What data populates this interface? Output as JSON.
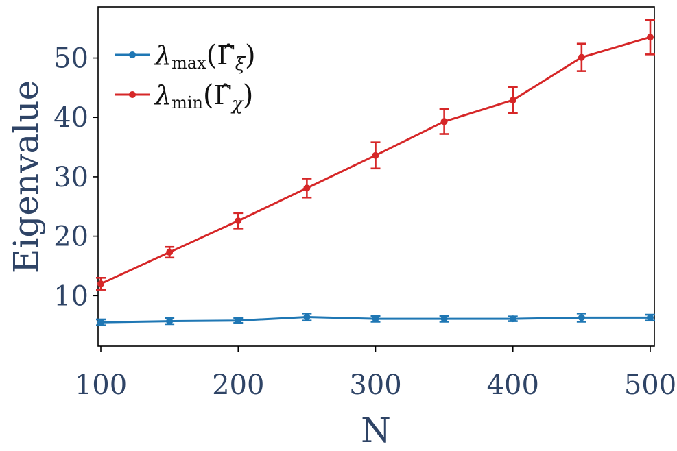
{
  "chart_data": {
    "type": "line",
    "xlabel": "N",
    "ylabel": "Eigenvalue",
    "x": [
      100,
      150,
      200,
      250,
      300,
      350,
      400,
      450,
      500
    ],
    "xlim": [
      98,
      503
    ],
    "ylim": [
      1.5,
      58.6
    ],
    "xticks": [
      100,
      200,
      300,
      400,
      500
    ],
    "yticks": [
      10,
      20,
      30,
      40,
      50
    ],
    "grid": false,
    "legend_position": "top-left",
    "series": [
      {
        "name": "λmax(Γ̂ξ)",
        "name_parts": {
          "symbol": "λ",
          "sub": "max",
          "arg": "Γ̂",
          "arg_sub": "ξ"
        },
        "color": "#1f77b4",
        "values": [
          5.5,
          5.7,
          5.8,
          6.4,
          6.1,
          6.1,
          6.1,
          6.3,
          6.3
        ],
        "errors": [
          0.5,
          0.5,
          0.4,
          0.6,
          0.5,
          0.5,
          0.4,
          0.7,
          0.5
        ]
      },
      {
        "name": "λmin(Γ̂χ)",
        "name_parts": {
          "symbol": "λ",
          "sub": "min",
          "arg": "Γ̂",
          "arg_sub": "χ"
        },
        "color": "#d62728",
        "values": [
          12.0,
          17.3,
          22.6,
          28.1,
          33.6,
          39.3,
          42.9,
          50.1,
          53.5
        ],
        "errors": [
          1.0,
          0.9,
          1.3,
          1.6,
          2.2,
          2.1,
          2.2,
          2.3,
          2.9
        ]
      }
    ]
  }
}
